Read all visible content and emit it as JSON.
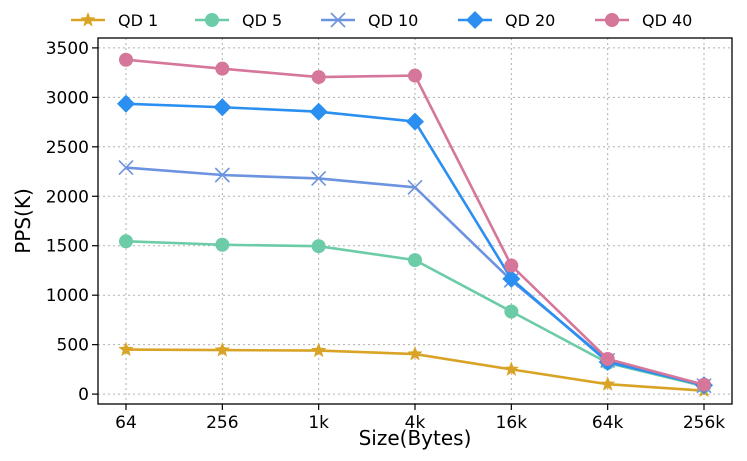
{
  "chart_data": {
    "type": "line",
    "title": "",
    "xlabel": "Size(Bytes)",
    "ylabel": "PPS(K)",
    "categories": [
      "64",
      "256",
      "1k",
      "4k",
      "16k",
      "64k",
      "256k"
    ],
    "ylim": [
      -100,
      3600
    ],
    "yticks": [
      0,
      500,
      1000,
      1500,
      2000,
      2500,
      3000,
      3500
    ],
    "grid": true,
    "legend_position": "top",
    "series": [
      {
        "name": "QD 1",
        "color": "#d9a326",
        "marker": "star",
        "values": [
          450,
          445,
          440,
          405,
          250,
          100,
          35
        ]
      },
      {
        "name": "QD 5",
        "color": "#6ccca7",
        "marker": "circle",
        "values": [
          1545,
          1510,
          1495,
          1355,
          835,
          315,
          80
        ]
      },
      {
        "name": "QD 10",
        "color": "#6b93df",
        "marker": "x",
        "values": [
          2290,
          2215,
          2180,
          2090,
          1150,
          340,
          85
        ]
      },
      {
        "name": "QD 20",
        "color": "#2a8ff0",
        "marker": "diamond",
        "values": [
          2935,
          2900,
          2855,
          2755,
          1165,
          325,
          90
        ]
      },
      {
        "name": "QD 40",
        "color": "#d5769a",
        "marker": "circle",
        "values": [
          3380,
          3290,
          3205,
          3220,
          1300,
          355,
          95
        ]
      }
    ]
  }
}
